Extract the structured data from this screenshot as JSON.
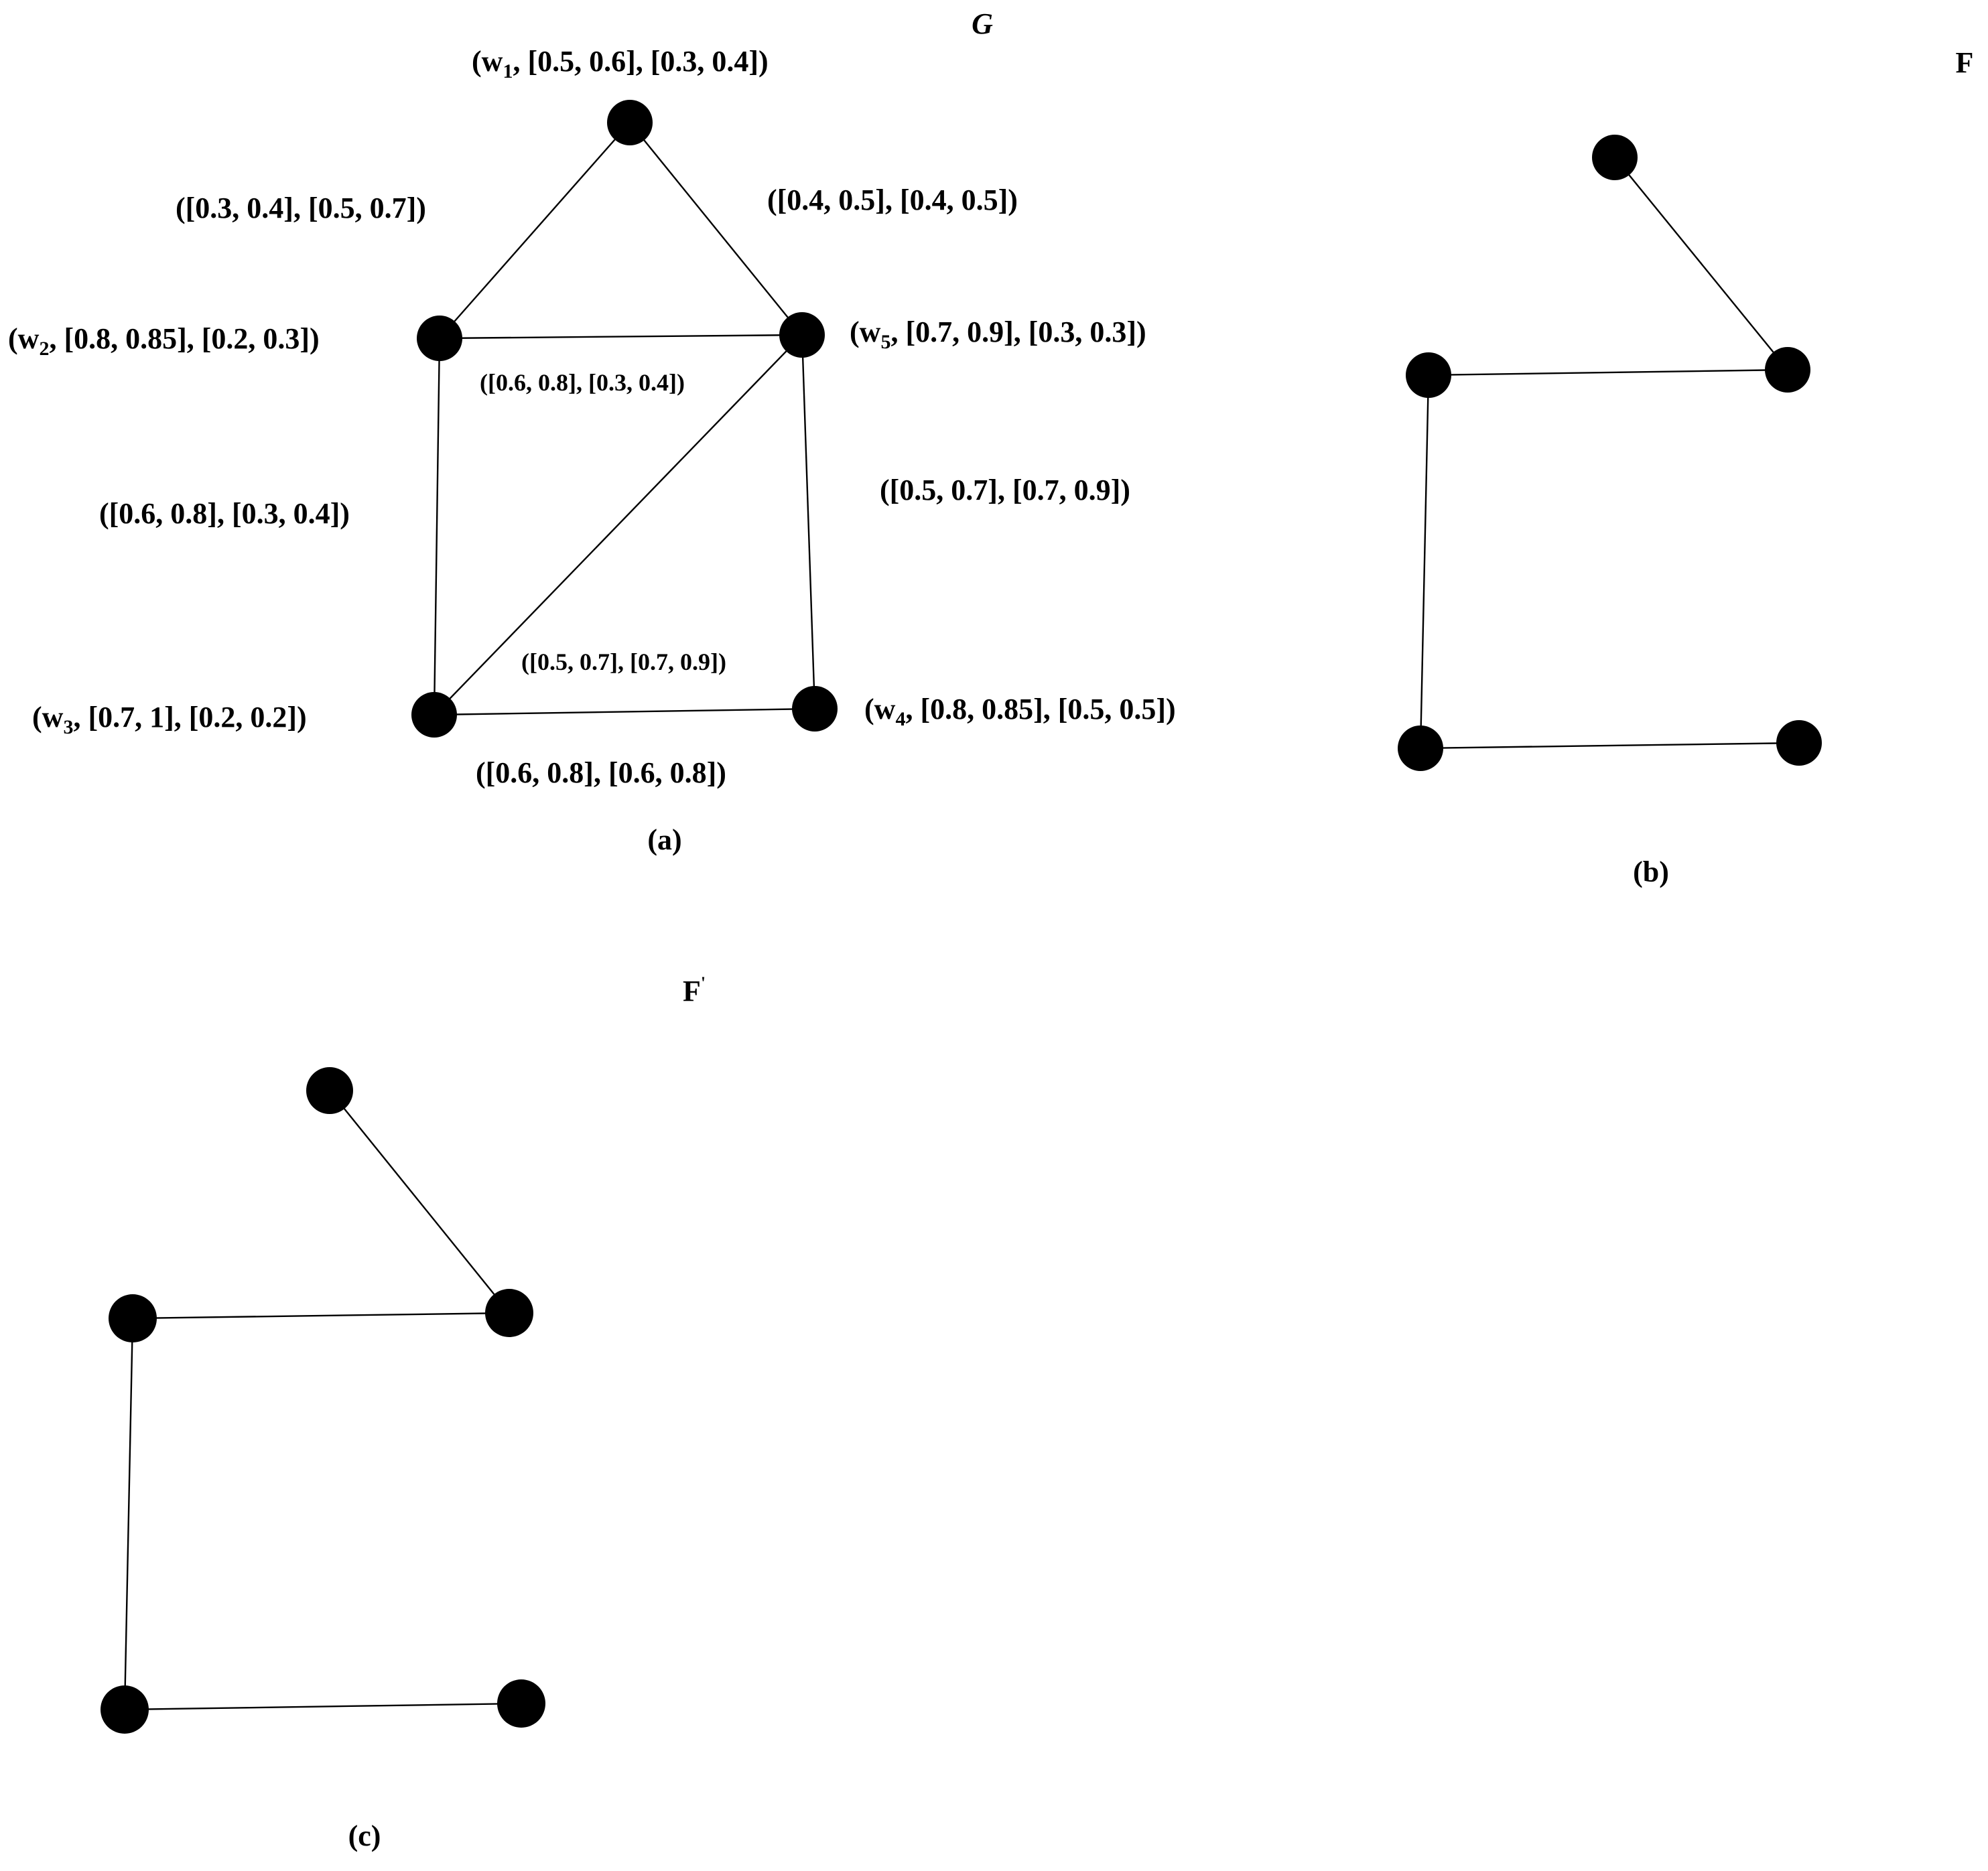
{
  "panels": [
    {
      "id": "a",
      "title": "G",
      "caption": "(a)",
      "nodes": [
        {
          "id": "w1",
          "label_prefix": "(w",
          "label_sub": "1",
          "label_suffix": ", [0.5, 0.6], [0.3, 0.4])"
        },
        {
          "id": "w2",
          "label_prefix": "(w",
          "label_sub": "2",
          "label_suffix": ", [0.8, 0.85], [0.2, 0.3])"
        },
        {
          "id": "w5",
          "label_prefix": "(w",
          "label_sub": "5",
          "label_suffix": ", [0.7, 0.9], [0.3, 0.3])"
        },
        {
          "id": "w3",
          "label_prefix": "(w",
          "label_sub": "3",
          "label_suffix": ", [0.7, 1], [0.2, 0.2])"
        },
        {
          "id": "w4",
          "label_prefix": "(w",
          "label_sub": "4",
          "label_suffix": ", [0.8, 0.85], [0.5, 0.5])"
        }
      ],
      "edges": [
        {
          "from": "w1",
          "to": "w2",
          "label": "([0.3, 0.4], [0.5, 0.7])"
        },
        {
          "from": "w1",
          "to": "w5",
          "label": "([0.4, 0.5], [0.4, 0.5])"
        },
        {
          "from": "w2",
          "to": "w5",
          "label": "([0.6, 0.8], [0.3, 0.4])"
        },
        {
          "from": "w2",
          "to": "w3",
          "label": "([0.6, 0.8], [0.3, 0.4])"
        },
        {
          "from": "w5",
          "to": "w4",
          "label": "([0.5, 0.7], [0.7, 0.9])"
        },
        {
          "from": "w5",
          "to": "w3",
          "label": "([0.5, 0.7], [0.7, 0.9])"
        },
        {
          "from": "w3",
          "to": "w4",
          "label": "([0.6, 0.8], [0.6, 0.8])"
        }
      ]
    },
    {
      "id": "b",
      "title": "F",
      "caption": "(b)",
      "nodes": [
        {
          "id": "v1"
        },
        {
          "id": "v2"
        },
        {
          "id": "v5"
        },
        {
          "id": "v3"
        },
        {
          "id": "v4"
        }
      ],
      "edges": [
        {
          "from": "v1",
          "to": "v5"
        },
        {
          "from": "v2",
          "to": "v5"
        },
        {
          "from": "v2",
          "to": "v3"
        },
        {
          "from": "v3",
          "to": "v4"
        }
      ]
    },
    {
      "id": "c",
      "title": "F",
      "title_mark": "'",
      "caption": "(c)",
      "nodes": [
        {
          "id": "u1"
        },
        {
          "id": "u2"
        },
        {
          "id": "u5"
        },
        {
          "id": "u3"
        },
        {
          "id": "u4"
        }
      ],
      "edges": [
        {
          "from": "u1",
          "to": "u5"
        },
        {
          "from": "u2",
          "to": "u5"
        },
        {
          "from": "u2",
          "to": "u3"
        },
        {
          "from": "u3",
          "to": "u4"
        }
      ]
    }
  ]
}
